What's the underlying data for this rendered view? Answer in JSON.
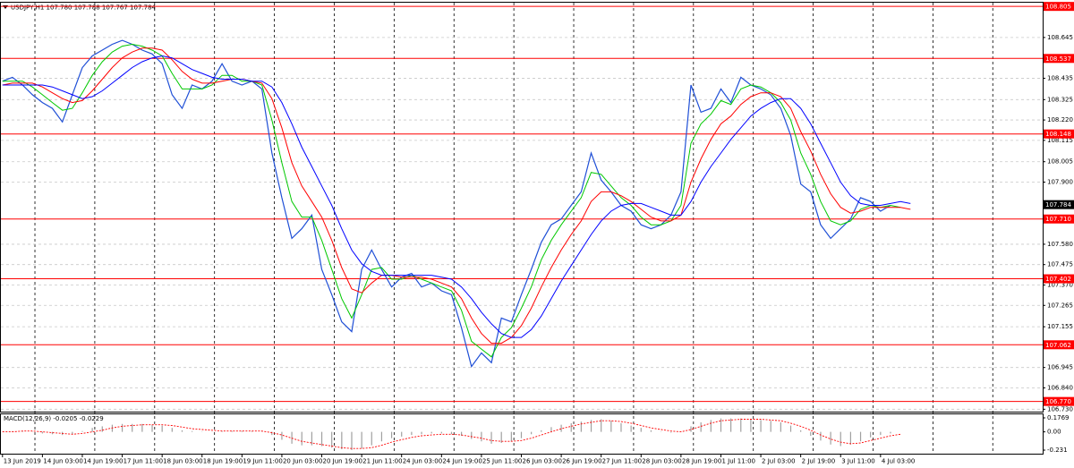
{
  "chart_data": [
    {
      "type": "line",
      "header": "USDJPY,H1  107.780 107.788 107.767 107.784",
      "x": [
        0,
        4,
        8,
        12,
        16,
        20,
        24,
        28,
        32,
        36,
        40,
        44,
        48,
        52,
        56,
        60,
        64,
        68,
        72,
        76,
        80,
        84,
        88,
        92,
        96,
        100,
        104,
        108,
        112,
        116,
        120,
        124,
        128,
        132,
        136,
        140,
        144,
        148,
        152,
        156,
        160,
        164,
        168,
        172,
        176,
        180,
        184,
        188,
        192,
        196,
        200,
        204,
        208,
        212,
        216,
        220,
        224,
        228,
        232,
        236,
        240,
        244,
        248,
        252,
        256,
        260,
        264,
        268,
        272,
        276,
        280,
        284,
        288,
        292,
        296,
        300,
        304,
        308,
        312,
        316,
        320,
        324,
        328,
        332,
        336,
        340,
        344,
        348,
        352,
        356,
        360,
        364
      ],
      "xlim": [
        -1,
        417
      ],
      "xticks": [
        {
          "value": 0,
          "label": "13 Jun 2019"
        },
        {
          "value": 16,
          "label": "14 Jun 03:00"
        },
        {
          "value": 32,
          "label": "14 Jun 19:00"
        },
        {
          "value": 48,
          "label": "17 Jun 11:00"
        },
        {
          "value": 64,
          "label": "18 Jun 03:00"
        },
        {
          "value": 80,
          "label": "18 Jun 19:00"
        },
        {
          "value": 96,
          "label": "19 Jun 11:00"
        },
        {
          "value": 112,
          "label": "20 Jun 03:00"
        },
        {
          "value": 128,
          "label": "20 Jun 19:00"
        },
        {
          "value": 144,
          "label": "21 Jun 11:00"
        },
        {
          "value": 160,
          "label": "24 Jun 03:00"
        },
        {
          "value": 176,
          "label": "24 Jun 19:00"
        },
        {
          "value": 192,
          "label": "25 Jun 11:00"
        },
        {
          "value": 208,
          "label": "26 Jun 03:00"
        },
        {
          "value": 224,
          "label": "26 Jun 19:00"
        },
        {
          "value": 240,
          "label": "27 Jun 11:00"
        },
        {
          "value": 256,
          "label": "28 Jun 03:00"
        },
        {
          "value": 272,
          "label": "28 Jun 19:00"
        },
        {
          "value": 288,
          "label": "1 Jul 11:00"
        },
        {
          "value": 304,
          "label": "2 Jul 03:00"
        },
        {
          "value": 320,
          "label": "2 Jul 19:00"
        },
        {
          "value": 336,
          "label": "3 Jul 11:00"
        },
        {
          "value": 352,
          "label": "4 Jul 03:00"
        }
      ],
      "x_gridlines": [
        13,
        37,
        61,
        85,
        109,
        133,
        157,
        181,
        205,
        229,
        253,
        277,
        301,
        325,
        349,
        373,
        397
      ],
      "ylim": [
        106.72,
        108.815
      ],
      "yticks": [
        108.645,
        108.435,
        108.325,
        {
          "value": 108.22,
          "label": "108.220"
        },
        108.115,
        108.005,
        {
          "value": 107.9,
          "label": "107.900"
        },
        {
          "value": 107.58,
          "label": "107.580"
        },
        107.475,
        {
          "value": 107.37,
          "label": "107.370"
        },
        107.265,
        107.155,
        106.945,
        {
          "value": 106.84,
          "label": "106.840"
        },
        {
          "value": 106.73,
          "label": "106.730"
        }
      ],
      "levels": [
        108.805,
        108.537,
        108.148,
        {
          "value": 107.71,
          "label": "107.710"
        },
        107.402,
        107.062,
        {
          "value": 106.77,
          "label": "106.770"
        }
      ],
      "levels_color": "#ff0000",
      "last_price": 107.784,
      "grid": true,
      "series": [
        {
          "color": "#1f4fd6",
          "values": [
            108.42,
            108.44,
            108.4,
            108.35,
            108.31,
            108.28,
            108.21,
            108.35,
            108.49,
            108.55,
            108.58,
            108.61,
            108.63,
            108.61,
            108.58,
            108.56,
            108.51,
            108.35,
            108.28,
            108.4,
            108.38,
            108.42,
            108.51,
            108.42,
            108.4,
            108.42,
            108.38,
            108.05,
            107.82,
            107.61,
            107.66,
            107.73,
            107.45,
            107.32,
            107.18,
            107.13,
            107.45,
            107.55,
            107.45,
            107.36,
            107.41,
            107.43,
            107.36,
            107.38,
            107.34,
            107.32,
            107.15,
            106.95,
            107.02,
            106.97,
            107.2,
            107.18,
            107.32,
            107.45,
            107.59,
            107.68,
            107.71,
            107.78,
            107.85,
            108.05,
            107.91,
            107.85,
            107.78,
            107.75,
            107.68,
            107.66,
            107.68,
            107.73,
            107.85,
            108.4,
            108.26,
            108.28,
            108.38,
            108.31,
            108.44,
            108.4,
            108.38,
            108.35,
            108.28,
            108.14,
            107.89,
            107.85,
            107.68,
            107.61,
            107.66,
            107.71,
            107.82,
            107.8,
            107.75,
            107.78,
            null,
            null
          ]
        },
        {
          "color": "#00c800",
          "values": [
            108.42,
            108.42,
            108.42,
            108.39,
            108.35,
            108.31,
            108.27,
            108.28,
            108.36,
            108.45,
            108.52,
            108.57,
            108.6,
            108.61,
            108.6,
            108.58,
            108.55,
            108.46,
            108.38,
            108.38,
            108.38,
            108.4,
            108.45,
            108.45,
            108.42,
            108.42,
            108.4,
            108.22,
            108.0,
            107.8,
            107.72,
            107.72,
            107.6,
            107.45,
            107.3,
            107.2,
            107.32,
            107.45,
            107.46,
            107.4,
            107.4,
            107.42,
            107.4,
            107.38,
            107.36,
            107.34,
            107.24,
            107.08,
            107.04,
            107.0,
            107.1,
            107.15,
            107.25,
            107.36,
            107.5,
            107.6,
            107.68,
            107.75,
            107.82,
            107.95,
            107.94,
            107.88,
            107.82,
            107.78,
            107.72,
            107.68,
            107.68,
            107.7,
            107.78,
            108.1,
            108.2,
            108.25,
            108.32,
            108.3,
            108.38,
            108.4,
            108.39,
            108.36,
            108.31,
            108.22,
            108.05,
            107.94,
            107.8,
            107.7,
            107.68,
            107.7,
            107.76,
            107.78,
            107.77,
            107.78,
            107.77,
            null
          ]
        },
        {
          "color": "#ff0000",
          "values": [
            108.4,
            108.41,
            108.41,
            108.41,
            108.39,
            108.36,
            108.33,
            108.31,
            108.32,
            108.37,
            108.43,
            108.49,
            108.54,
            108.57,
            108.59,
            108.59,
            108.58,
            108.53,
            108.47,
            108.43,
            108.41,
            108.41,
            108.42,
            108.43,
            108.43,
            108.42,
            108.41,
            108.33,
            108.18,
            108.0,
            107.88,
            107.8,
            107.72,
            107.6,
            107.46,
            107.35,
            107.33,
            107.38,
            107.42,
            107.42,
            107.41,
            107.41,
            107.41,
            107.4,
            107.38,
            107.36,
            107.3,
            107.2,
            107.12,
            107.07,
            107.07,
            107.1,
            107.16,
            107.25,
            107.36,
            107.46,
            107.55,
            107.63,
            107.7,
            107.8,
            107.85,
            107.85,
            107.83,
            107.8,
            107.76,
            107.72,
            107.7,
            107.7,
            107.73,
            107.9,
            108.02,
            108.12,
            108.2,
            108.24,
            108.3,
            108.34,
            108.36,
            108.36,
            108.34,
            108.28,
            108.16,
            108.06,
            107.94,
            107.84,
            107.77,
            107.74,
            107.75,
            107.77,
            107.77,
            107.77,
            107.77,
            107.76
          ]
        },
        {
          "color": "#0000ff",
          "values": [
            108.4,
            108.4,
            108.4,
            108.4,
            108.4,
            108.39,
            108.37,
            108.35,
            108.33,
            108.34,
            108.37,
            108.41,
            108.45,
            108.49,
            108.52,
            108.54,
            108.55,
            108.54,
            108.51,
            108.48,
            108.46,
            108.44,
            108.43,
            108.43,
            108.43,
            108.42,
            108.42,
            108.39,
            108.31,
            108.2,
            108.08,
            107.98,
            107.88,
            107.78,
            107.66,
            107.55,
            107.48,
            107.44,
            107.42,
            107.42,
            107.42,
            107.42,
            107.42,
            107.42,
            107.41,
            107.4,
            107.36,
            107.3,
            107.23,
            107.17,
            107.12,
            107.1,
            107.1,
            107.14,
            107.21,
            107.3,
            107.39,
            107.47,
            107.55,
            107.63,
            107.7,
            107.75,
            107.78,
            107.79,
            107.79,
            107.77,
            107.75,
            107.73,
            107.73,
            107.8,
            107.9,
            107.98,
            108.05,
            108.12,
            108.18,
            108.24,
            108.28,
            108.31,
            108.33,
            108.33,
            108.28,
            108.2,
            108.1,
            108.0,
            107.9,
            107.83,
            107.79,
            107.78,
            107.78,
            107.79,
            107.8,
            107.79
          ]
        }
      ]
    },
    {
      "type": "bar",
      "title": "MACD(12,26,9) -0.0205 -0.0229",
      "ylim": [
        -0.276,
        0.222
      ],
      "yticks": [
        0.1769,
        {
          "value": 0,
          "label": "0.00"
        },
        -0.231
      ],
      "series": [
        {
          "style": "bar",
          "color": "#a0a0a0",
          "values": [
            0.0,
            0.01,
            0.01,
            0.0,
            -0.02,
            -0.03,
            -0.04,
            -0.03,
            0.01,
            0.05,
            0.07,
            0.09,
            0.1,
            0.1,
            0.1,
            0.09,
            0.08,
            0.05,
            0.02,
            0.01,
            0.0,
            0.0,
            0.01,
            0.01,
            0.01,
            0.01,
            0.0,
            -0.04,
            -0.1,
            -0.15,
            -0.17,
            -0.17,
            -0.18,
            -0.2,
            -0.22,
            -0.23,
            -0.21,
            -0.17,
            -0.12,
            -0.08,
            -0.06,
            -0.04,
            -0.03,
            -0.02,
            -0.02,
            -0.03,
            -0.05,
            -0.09,
            -0.12,
            -0.15,
            -0.14,
            -0.12,
            -0.08,
            -0.03,
            0.02,
            0.06,
            0.09,
            0.11,
            0.13,
            0.15,
            0.16,
            0.14,
            0.11,
            0.08,
            0.05,
            0.02,
            0.0,
            -0.01,
            0.0,
            0.07,
            0.12,
            0.15,
            0.17,
            0.17,
            0.17,
            0.16,
            0.15,
            0.14,
            0.12,
            0.08,
            0.02,
            -0.05,
            -0.11,
            -0.16,
            -0.18,
            -0.16,
            -0.12,
            -0.07,
            -0.04,
            -0.02,
            null,
            null
          ]
        },
        {
          "style": "dotted",
          "color": "#ff0000",
          "values": [
            0.0,
            0.0,
            0.01,
            0.01,
            0.0,
            -0.01,
            -0.02,
            -0.03,
            -0.02,
            0.0,
            0.02,
            0.05,
            0.07,
            0.08,
            0.09,
            0.09,
            0.09,
            0.08,
            0.06,
            0.04,
            0.03,
            0.02,
            0.01,
            0.01,
            0.01,
            0.01,
            0.01,
            -0.01,
            -0.04,
            -0.08,
            -0.12,
            -0.14,
            -0.16,
            -0.18,
            -0.2,
            -0.21,
            -0.21,
            -0.2,
            -0.17,
            -0.13,
            -0.1,
            -0.07,
            -0.05,
            -0.04,
            -0.03,
            -0.03,
            -0.04,
            -0.06,
            -0.08,
            -0.11,
            -0.12,
            -0.12,
            -0.11,
            -0.08,
            -0.04,
            0.0,
            0.04,
            0.07,
            0.1,
            0.12,
            0.14,
            0.14,
            0.13,
            0.11,
            0.08,
            0.05,
            0.03,
            0.01,
            0.0,
            0.03,
            0.07,
            0.11,
            0.14,
            0.15,
            0.16,
            0.16,
            0.16,
            0.15,
            0.14,
            0.11,
            0.07,
            0.02,
            -0.04,
            -0.09,
            -0.13,
            -0.15,
            -0.14,
            -0.11,
            -0.08,
            -0.05,
            -0.03,
            null
          ]
        }
      ]
    }
  ]
}
